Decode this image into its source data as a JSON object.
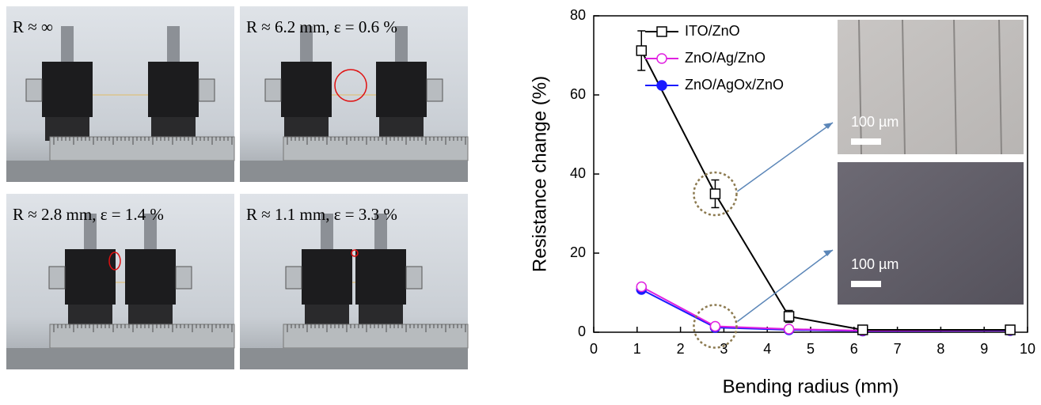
{
  "photos": [
    {
      "label": "R ≈ ∞"
    },
    {
      "label": "R ≈ 6.2 mm, ε = 0.6 %"
    },
    {
      "label": "R ≈ 2.8 mm, ε = 1.4 %"
    },
    {
      "label": "R ≈ 1.1 mm, ε = 3.3 %"
    }
  ],
  "chart_data": {
    "type": "line",
    "x_label": "Bending radius (mm)",
    "y_label": "Resistance change (%)",
    "xlim": [
      0,
      10
    ],
    "xticks": [
      0,
      1,
      2,
      3,
      4,
      5,
      6,
      7,
      8,
      9,
      10
    ],
    "ylim": [
      0,
      80
    ],
    "yticks": [
      0,
      20,
      40,
      60,
      80
    ],
    "legend": "upper-left",
    "x": [
      1.1,
      2.8,
      4.5,
      6.2,
      9.6
    ],
    "series": [
      {
        "name": "ITO/ZnO",
        "color": "#000000",
        "marker": "square-open",
        "values": [
          71.2,
          35,
          4,
          0.6,
          0.6
        ],
        "errors": [
          5,
          3.5,
          1.5,
          0.3,
          0.3
        ]
      },
      {
        "name": "ZnO/Ag/ZnO",
        "color": "#e020e0",
        "marker": "circle-open",
        "values": [
          11.5,
          1.5,
          0.8,
          0.4,
          0.5
        ]
      },
      {
        "name": "ZnO/AgOx/ZnO",
        "color": "#1a1aff",
        "marker": "circle-filled",
        "values": [
          10.8,
          1.2,
          0.6,
          0.3,
          0.4
        ]
      }
    ],
    "insets": [
      {
        "scale_label": "100 µm"
      },
      {
        "scale_label": "100 µm"
      }
    ]
  }
}
